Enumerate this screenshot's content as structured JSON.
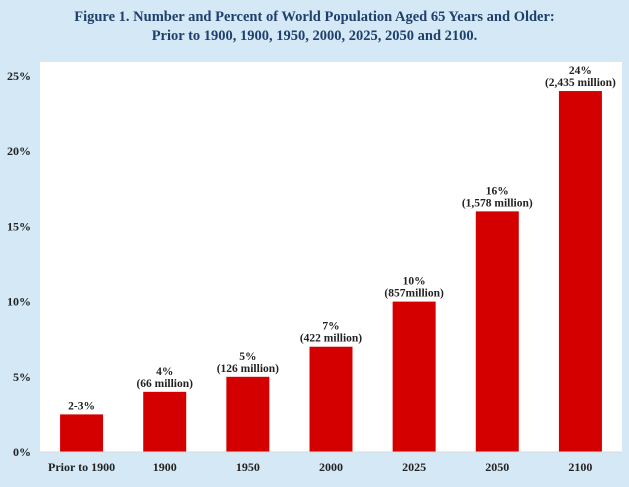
{
  "title_lines": [
    "Figure 1. Number and Percent of World Population Aged 65 Years and Older:",
    "Prior to 1900, 1900, 1950, 2000, 2025, 2050 and 2100."
  ],
  "colors": {
    "background": "#d4e9f5",
    "plot_area": "#ffffff",
    "bar": "#d40000",
    "title": "#1f3f6d",
    "text": "#222222"
  },
  "chart_data": {
    "type": "bar",
    "title": "Figure 1. Number and Percent of World Population Aged 65 Years and Older: Prior to 1900, 1900, 1950, 2000, 2025, 2050 and 2100.",
    "xlabel": "",
    "ylabel": "",
    "categories": [
      "Prior to 1900",
      "1900",
      "1950",
      "2000",
      "2025",
      "2050",
      "2100"
    ],
    "values": [
      2.5,
      4,
      5,
      7,
      10,
      16,
      24
    ],
    "data_labels": [
      [
        "2-3%"
      ],
      [
        "4%",
        "(66 million)"
      ],
      [
        "5%",
        "(126 million)"
      ],
      [
        "7%",
        "(422 million)"
      ],
      [
        "10%",
        "(857million)"
      ],
      [
        "16%",
        "(1,578 million)"
      ],
      [
        "24%",
        "(2,435 million)"
      ]
    ],
    "yticks": [
      0,
      5,
      10,
      15,
      20,
      25
    ],
    "ytick_labels": [
      "0%",
      "5%",
      "10%",
      "15%",
      "20%",
      "25%"
    ],
    "ylim": [
      0,
      25
    ],
    "grid": false,
    "legend": "none"
  }
}
